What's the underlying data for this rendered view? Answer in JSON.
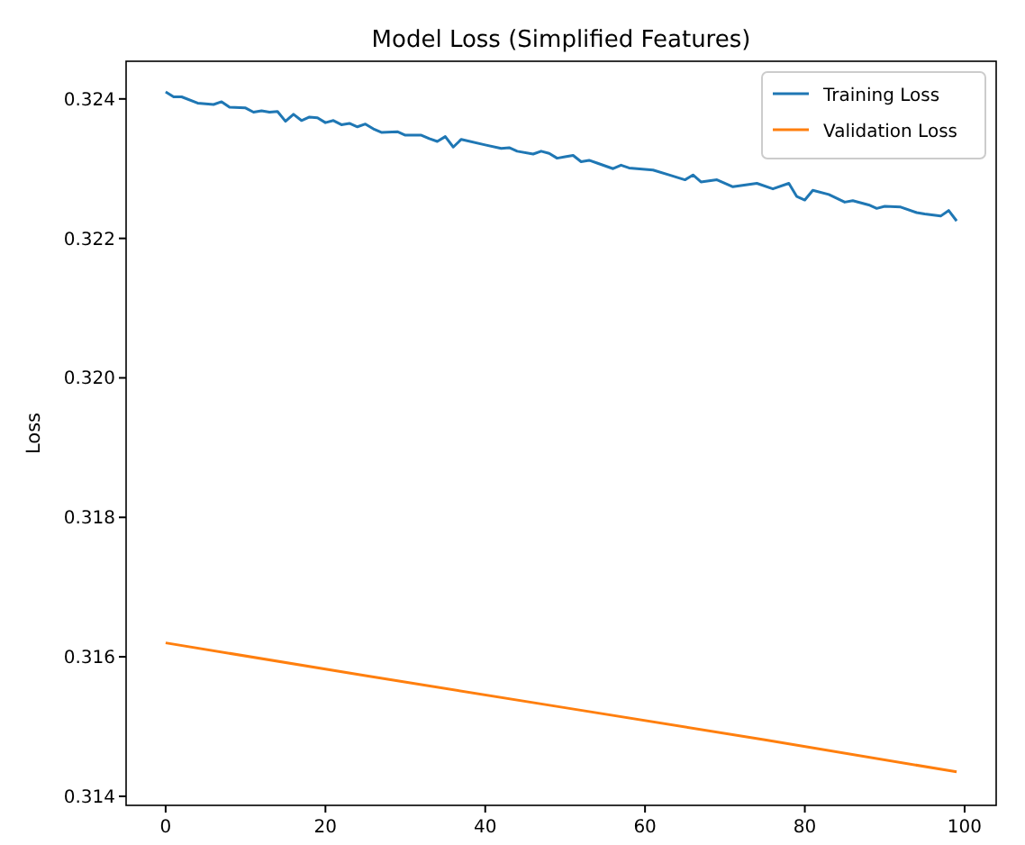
{
  "chart_data": {
    "type": "line",
    "title": "Model Loss (Simplified Features)",
    "ylabel": "Loss",
    "xlim": [
      -4.95,
      103.95
    ],
    "xticks": [
      0,
      20,
      40,
      60,
      80,
      100
    ],
    "ylim": [
      0.31387,
      0.32454
    ],
    "yticks": [
      {
        "value": 0.314,
        "label": "0.314"
      },
      {
        "value": 0.316,
        "label": "0.316"
      },
      {
        "value": 0.318,
        "label": "0.318"
      },
      {
        "value": 0.32,
        "label": "0.320"
      },
      {
        "value": 0.322,
        "label": "0.322"
      },
      {
        "value": 0.324,
        "label": "0.324"
      }
    ],
    "legend": "top right",
    "grid": false,
    "marker": "none",
    "line_style": "solid",
    "series": [
      {
        "name": "Training Loss",
        "color": "#1f77b4",
        "x": [
          0,
          1,
          2,
          4,
          6,
          7,
          8,
          10,
          11,
          12,
          13,
          14,
          15,
          16,
          17,
          18,
          19,
          20,
          21,
          22,
          23,
          24,
          25,
          26,
          27,
          29,
          30,
          32,
          33,
          34,
          35,
          36,
          37,
          40,
          42,
          43,
          44,
          46,
          47,
          48,
          49,
          50,
          51,
          52,
          53,
          54,
          56,
          57,
          58,
          61,
          63,
          65,
          66,
          67,
          69,
          71,
          74,
          76,
          78,
          79,
          80,
          81,
          83,
          85,
          86,
          88,
          89,
          90,
          92,
          94,
          95,
          97,
          98,
          99
        ],
        "values": [
          0.3241,
          0.32403,
          0.32403,
          0.32394,
          0.32392,
          0.32396,
          0.32388,
          0.32387,
          0.32381,
          0.32383,
          0.32381,
          0.32382,
          0.32368,
          0.32378,
          0.32369,
          0.32374,
          0.32373,
          0.32366,
          0.32369,
          0.32363,
          0.32365,
          0.3236,
          0.32364,
          0.32357,
          0.32352,
          0.32353,
          0.32348,
          0.32348,
          0.32343,
          0.32339,
          0.32346,
          0.32331,
          0.32342,
          0.32334,
          0.32329,
          0.3233,
          0.32325,
          0.32321,
          0.32325,
          0.32322,
          0.32315,
          0.32317,
          0.32319,
          0.3231,
          0.32312,
          0.32308,
          0.323,
          0.32305,
          0.32301,
          0.32298,
          0.32291,
          0.32284,
          0.32291,
          0.32281,
          0.32284,
          0.32274,
          0.32279,
          0.32271,
          0.32279,
          0.3226,
          0.32255,
          0.32269,
          0.32263,
          0.32252,
          0.32254,
          0.32248,
          0.32243,
          0.32246,
          0.32245,
          0.32237,
          0.32235,
          0.32232,
          0.3224,
          0.32225
        ]
      },
      {
        "name": "Validation Loss",
        "color": "#ff7f0e",
        "x": [
          0,
          25,
          50,
          75,
          99
        ],
        "values": [
          0.3162,
          0.31573,
          0.31527,
          0.31481,
          0.31435
        ]
      }
    ]
  }
}
